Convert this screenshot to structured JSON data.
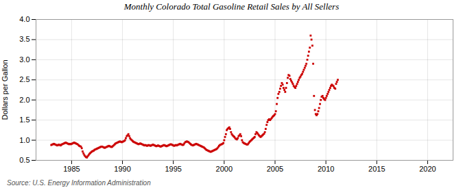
{
  "chart_data": {
    "type": "scatter",
    "title": "Monthly Colorado Total Gasoline Retail Sales by All Sellers",
    "ylabel": "Dollars per Gallon",
    "source": "Source: U.S. Energy Information Administration",
    "color": "#cc0000",
    "marker": "square",
    "grid": true,
    "xlim": [
      1981.5,
      2022.5
    ],
    "ylim": [
      0.5,
      4.0
    ],
    "xticks": [
      1985,
      1990,
      1995,
      2000,
      2005,
      2010,
      2015,
      2020
    ],
    "yticks": [
      0.5,
      {
        "value": 1.0,
        "label": "1.0"
      },
      1.5,
      {
        "value": 2.0,
        "label": "2.0"
      },
      2.5,
      {
        "value": 3.0,
        "label": "3.0"
      },
      3.5,
      {
        "value": 4.0,
        "label": "4.0"
      }
    ],
    "x": [
      1983.0,
      1983.08,
      1983.17,
      1983.25,
      1983.33,
      1983.42,
      1983.5,
      1983.58,
      1983.67,
      1983.75,
      1983.83,
      1983.92,
      1984.0,
      1984.08,
      1984.17,
      1984.25,
      1984.33,
      1984.42,
      1984.5,
      1984.58,
      1984.67,
      1984.75,
      1984.83,
      1984.92,
      1985.0,
      1985.08,
      1985.17,
      1985.25,
      1985.33,
      1985.42,
      1985.5,
      1985.58,
      1985.67,
      1985.75,
      1985.83,
      1985.92,
      1986.0,
      1986.08,
      1986.17,
      1986.25,
      1986.33,
      1986.42,
      1986.5,
      1986.58,
      1986.67,
      1986.75,
      1986.83,
      1986.92,
      1987.0,
      1987.08,
      1987.17,
      1987.25,
      1987.33,
      1987.42,
      1987.5,
      1987.58,
      1987.67,
      1987.75,
      1987.83,
      1987.92,
      1988.0,
      1988.08,
      1988.17,
      1988.25,
      1988.33,
      1988.42,
      1988.5,
      1988.58,
      1988.67,
      1988.75,
      1988.83,
      1988.92,
      1989.0,
      1989.08,
      1989.17,
      1989.25,
      1989.33,
      1989.42,
      1989.5,
      1989.58,
      1989.67,
      1989.75,
      1989.83,
      1989.92,
      1990.0,
      1990.08,
      1990.17,
      1990.25,
      1990.33,
      1990.42,
      1990.5,
      1990.58,
      1990.67,
      1990.75,
      1990.83,
      1990.92,
      1991.0,
      1991.08,
      1991.17,
      1991.25,
      1991.33,
      1991.42,
      1991.5,
      1991.58,
      1991.67,
      1991.75,
      1991.83,
      1991.92,
      1992.0,
      1992.08,
      1992.17,
      1992.25,
      1992.33,
      1992.42,
      1992.5,
      1992.58,
      1992.67,
      1992.75,
      1992.83,
      1992.92,
      1993.0,
      1993.08,
      1993.17,
      1993.25,
      1993.33,
      1993.42,
      1993.5,
      1993.58,
      1993.67,
      1993.75,
      1993.83,
      1993.92,
      1994.0,
      1994.08,
      1994.17,
      1994.25,
      1994.33,
      1994.42,
      1994.5,
      1994.58,
      1994.67,
      1994.75,
      1994.83,
      1994.92,
      1995.0,
      1995.08,
      1995.17,
      1995.25,
      1995.33,
      1995.42,
      1995.5,
      1995.58,
      1995.67,
      1995.75,
      1995.83,
      1995.92,
      1996.0,
      1996.08,
      1996.17,
      1996.25,
      1996.33,
      1996.42,
      1996.5,
      1996.58,
      1996.67,
      1996.75,
      1996.83,
      1996.92,
      1997.0,
      1997.08,
      1997.17,
      1997.25,
      1997.33,
      1997.42,
      1997.5,
      1997.58,
      1997.67,
      1997.75,
      1997.83,
      1997.92,
      1998.0,
      1998.08,
      1998.17,
      1998.25,
      1998.33,
      1998.42,
      1998.5,
      1998.58,
      1998.67,
      1998.75,
      1998.83,
      1998.92,
      1999.0,
      1999.08,
      1999.17,
      1999.25,
      1999.33,
      1999.42,
      1999.5,
      1999.58,
      1999.67,
      1999.75,
      1999.83,
      1999.92,
      2000.0,
      2000.08,
      2000.17,
      2000.25,
      2000.33,
      2000.42,
      2000.5,
      2000.58,
      2000.67,
      2000.75,
      2000.83,
      2000.92,
      2001.0,
      2001.08,
      2001.17,
      2001.25,
      2001.33,
      2001.42,
      2001.5,
      2001.58,
      2001.67,
      2001.75,
      2001.83,
      2001.92,
      2002.0,
      2002.08,
      2002.17,
      2002.25,
      2002.33,
      2002.42,
      2002.5,
      2002.58,
      2002.67,
      2002.75,
      2002.83,
      2002.92,
      2003.0,
      2003.08,
      2003.17,
      2003.25,
      2003.33,
      2003.42,
      2003.5,
      2003.58,
      2003.67,
      2003.75,
      2003.83,
      2003.92,
      2004.0,
      2004.08,
      2004.17,
      2004.25,
      2004.33,
      2004.42,
      2004.5,
      2004.58,
      2004.67,
      2004.75,
      2004.83,
      2004.92,
      2005.0,
      2005.08,
      2005.17,
      2005.25,
      2005.33,
      2005.42,
      2005.5,
      2005.58,
      2005.67,
      2005.75,
      2005.83,
      2005.92,
      2006.0,
      2006.08,
      2006.17,
      2006.25,
      2006.33,
      2006.42,
      2006.5,
      2006.58,
      2006.67,
      2006.75,
      2006.83,
      2006.92,
      2007.0,
      2007.08,
      2007.17,
      2007.25,
      2007.33,
      2007.42,
      2007.5,
      2007.58,
      2007.67,
      2007.75,
      2007.83,
      2007.92,
      2008.0,
      2008.08,
      2008.17,
      2008.25,
      2008.33,
      2008.42,
      2008.5,
      2008.58,
      2008.67,
      2008.75,
      2008.83,
      2008.92,
      2009.0,
      2009.08,
      2009.17,
      2009.25,
      2009.33,
      2009.42,
      2009.5,
      2009.58,
      2009.67,
      2009.75,
      2009.83,
      2009.92,
      2010.0,
      2010.08,
      2010.17,
      2010.25,
      2010.33,
      2010.42,
      2010.5,
      2010.58,
      2010.67,
      2010.75,
      2010.83,
      2010.92,
      2011.0,
      2011.08,
      2011.17
    ],
    "values": [
      0.88,
      0.89,
      0.9,
      0.91,
      0.9,
      0.89,
      0.88,
      0.87,
      0.88,
      0.89,
      0.88,
      0.87,
      0.89,
      0.9,
      0.91,
      0.92,
      0.93,
      0.94,
      0.93,
      0.92,
      0.91,
      0.9,
      0.91,
      0.9,
      0.91,
      0.92,
      0.93,
      0.94,
      0.93,
      0.92,
      0.91,
      0.9,
      0.88,
      0.86,
      0.85,
      0.84,
      0.8,
      0.72,
      0.67,
      0.63,
      0.6,
      0.58,
      0.57,
      0.6,
      0.63,
      0.66,
      0.68,
      0.7,
      0.72,
      0.73,
      0.74,
      0.76,
      0.77,
      0.78,
      0.79,
      0.8,
      0.81,
      0.82,
      0.83,
      0.84,
      0.84,
      0.83,
      0.82,
      0.81,
      0.82,
      0.83,
      0.84,
      0.85,
      0.86,
      0.85,
      0.84,
      0.83,
      0.84,
      0.86,
      0.88,
      0.9,
      0.92,
      0.93,
      0.94,
      0.95,
      0.96,
      0.97,
      0.96,
      0.95,
      0.96,
      0.97,
      0.98,
      1.0,
      1.05,
      1.1,
      1.12,
      1.15,
      1.1,
      1.05,
      1.02,
      1.0,
      0.98,
      0.96,
      0.95,
      0.94,
      0.93,
      0.92,
      0.91,
      0.9,
      0.91,
      0.92,
      0.91,
      0.9,
      0.89,
      0.88,
      0.87,
      0.88,
      0.87,
      0.86,
      0.87,
      0.88,
      0.87,
      0.86,
      0.87,
      0.88,
      0.89,
      0.88,
      0.87,
      0.86,
      0.85,
      0.86,
      0.87,
      0.86,
      0.85,
      0.84,
      0.85,
      0.86,
      0.87,
      0.88,
      0.87,
      0.86,
      0.85,
      0.86,
      0.87,
      0.88,
      0.89,
      0.9,
      0.89,
      0.88,
      0.87,
      0.86,
      0.87,
      0.88,
      0.87,
      0.88,
      0.89,
      0.9,
      0.91,
      0.9,
      0.89,
      0.88,
      0.89,
      0.92,
      0.95,
      0.96,
      0.97,
      0.96,
      0.95,
      0.93,
      0.91,
      0.89,
      0.88,
      0.87,
      0.88,
      0.89,
      0.9,
      0.91,
      0.9,
      0.89,
      0.88,
      0.87,
      0.86,
      0.85,
      0.84,
      0.83,
      0.82,
      0.8,
      0.78,
      0.76,
      0.75,
      0.74,
      0.73,
      0.72,
      0.71,
      0.72,
      0.73,
      0.74,
      0.75,
      0.76,
      0.77,
      0.78,
      0.8,
      0.83,
      0.86,
      0.88,
      0.89,
      0.9,
      0.91,
      0.93,
      1.0,
      1.08,
      1.15,
      1.25,
      1.28,
      1.3,
      1.32,
      1.28,
      1.2,
      1.15,
      1.12,
      1.1,
      1.08,
      1.05,
      1.03,
      1.02,
      1.05,
      1.1,
      1.12,
      1.15,
      1.1,
      1.0,
      0.95,
      0.93,
      0.92,
      0.91,
      0.9,
      0.89,
      0.9,
      0.93,
      0.96,
      0.98,
      1.0,
      1.02,
      1.04,
      1.06,
      1.08,
      1.15,
      1.2,
      1.18,
      1.15,
      1.12,
      1.1,
      1.08,
      1.1,
      1.12,
      1.14,
      1.16,
      1.2,
      1.28,
      1.38,
      1.45,
      1.5,
      1.52,
      1.5,
      1.52,
      1.55,
      1.58,
      1.6,
      1.62,
      1.65,
      1.72,
      1.9,
      2.05,
      2.15,
      2.2,
      2.28,
      2.35,
      2.42,
      2.38,
      2.3,
      2.25,
      2.2,
      2.3,
      2.42,
      2.55,
      2.62,
      2.6,
      2.52,
      2.48,
      2.44,
      2.4,
      2.35,
      2.32,
      2.3,
      2.35,
      2.4,
      2.45,
      2.5,
      2.55,
      2.58,
      2.62,
      2.65,
      2.7,
      2.75,
      2.8,
      2.85,
      2.9,
      3.0,
      3.1,
      3.2,
      3.3,
      3.6,
      3.5,
      3.35,
      2.9,
      2.1,
      1.75,
      1.65,
      1.62,
      1.65,
      1.72,
      1.8,
      1.9,
      2.0,
      2.08,
      2.1,
      2.05,
      2.02,
      2.0,
      2.05,
      2.1,
      2.15,
      2.2,
      2.25,
      2.3,
      2.35,
      2.38,
      2.36,
      2.34,
      2.3,
      2.28,
      2.4,
      2.45,
      2.5
    ]
  }
}
